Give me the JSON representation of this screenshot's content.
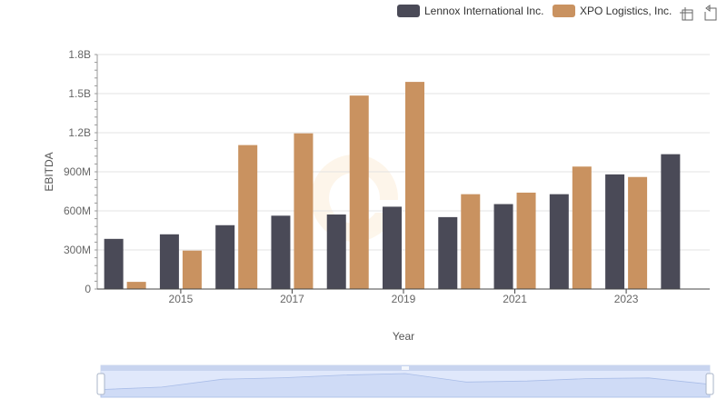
{
  "chart_data": {
    "type": "bar",
    "title": "",
    "xlabel": "Year",
    "ylabel": "EBITDA",
    "categories": [
      "2014",
      "2015",
      "2016",
      "2017",
      "2018",
      "2019",
      "2020",
      "2021",
      "2022",
      "2023",
      "2024"
    ],
    "x_tick_labels": [
      "2015",
      "2017",
      "2019",
      "2021",
      "2023"
    ],
    "y_ticks": [
      0,
      300000000,
      600000000,
      900000000,
      1200000000,
      1500000000,
      1800000000
    ],
    "y_tick_labels": [
      "0",
      "300M",
      "600M",
      "900M",
      "1.2B",
      "1.5B",
      "1.8B"
    ],
    "ylim": [
      0,
      1800000000
    ],
    "grid": true,
    "legend_position": "top-right",
    "series": [
      {
        "name": "Lennox International Inc.",
        "color": "#4a4a57",
        "values": [
          385000000,
          420000000,
          490000000,
          563000000,
          572000000,
          632000000,
          552000000,
          652000000,
          728000000,
          880000000,
          1035000000
        ]
      },
      {
        "name": "XPO Logistics, Inc.",
        "color": "#c99260",
        "values": [
          55000000,
          295000000,
          1105000000,
          1195000000,
          1485000000,
          1590000000,
          728000000,
          740000000,
          940000000,
          860000000,
          null
        ]
      }
    ]
  },
  "toolbox": {
    "zoom_icon": "zoom-icon",
    "restore_icon": "restore-icon"
  }
}
